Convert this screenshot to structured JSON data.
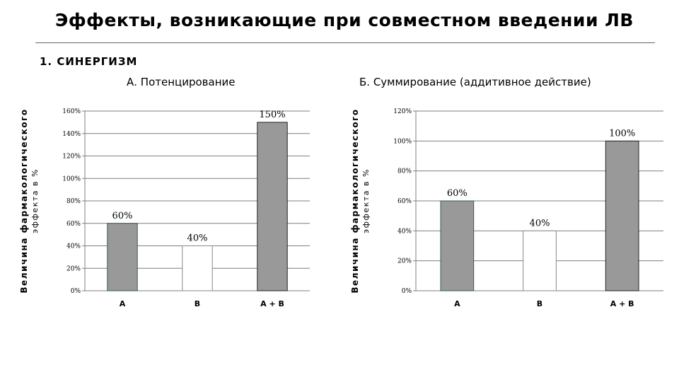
{
  "slide": {
    "title": "Эффекты, возникающие при совместном введении ЛВ",
    "section": "1. СИНЕРГИЗМ"
  },
  "chart_data": [
    {
      "type": "bar",
      "title": "А. Потенцирование",
      "ylabel": "Величина фармакологического эффекта в %",
      "categories": [
        "А",
        "В",
        "А + В"
      ],
      "values": [
        60,
        40,
        150
      ],
      "data_labels": [
        "60%",
        "40%",
        "150%"
      ],
      "ylim": [
        0,
        160
      ],
      "yticks": [
        0,
        20,
        40,
        60,
        80,
        100,
        120,
        140,
        160
      ],
      "ytick_labels": [
        "0%",
        "20%",
        "40%",
        "60%",
        "80%",
        "100%",
        "120%",
        "140%",
        "160%"
      ],
      "bar_colors": [
        "#999999",
        "#ffffff",
        "#999999"
      ],
      "bar_edge_colors": [
        "#2f5e57",
        "#888888",
        "#222222"
      ],
      "grid": true,
      "legend": "none"
    },
    {
      "type": "bar",
      "title": "Б. Суммирование (аддитивное действие)",
      "ylabel": "Величина фармакологического эффекта в %",
      "categories": [
        "А",
        "В",
        "А + В"
      ],
      "values": [
        60,
        40,
        100
      ],
      "data_labels": [
        "60%",
        "40%",
        "100%"
      ],
      "ylim": [
        0,
        120
      ],
      "yticks": [
        0,
        20,
        40,
        60,
        80,
        100,
        120
      ],
      "ytick_labels": [
        "0%",
        "20%",
        "40%",
        "60%",
        "80%",
        "100%",
        "120%"
      ],
      "bar_colors": [
        "#999999",
        "#ffffff",
        "#999999"
      ],
      "bar_edge_colors": [
        "#2f5e57",
        "#888888",
        "#222222"
      ],
      "grid": true,
      "legend": "none"
    }
  ]
}
